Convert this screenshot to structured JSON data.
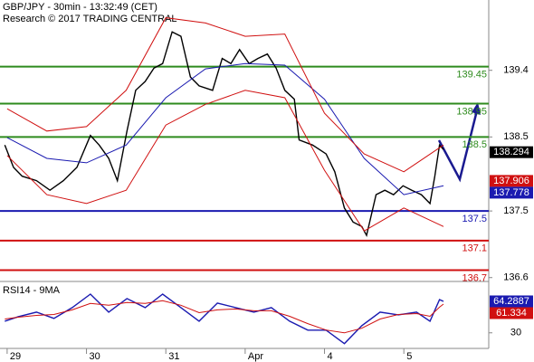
{
  "chart_data": [
    {
      "type": "line",
      "title": "GBP/JPY - 30min - 13:32:49 (CET)",
      "subtitle": "Research © 2017 TRADING CENTRAL",
      "xlim": [
        -0.09,
        6.07
      ],
      "ylim": [
        136.56,
        140.35
      ],
      "yticks": [
        139.4,
        138.5,
        137.5,
        136.6
      ],
      "levels": [
        {
          "value": 139.45,
          "color": "#2e8b1e"
        },
        {
          "value": 138.95,
          "color": "#2e8b1e"
        },
        {
          "value": 138.5,
          "color": "#2e8b1e"
        },
        {
          "value": 137.5,
          "color": "#1a1ab0"
        },
        {
          "value": 137.1,
          "color": "#d01010"
        },
        {
          "value": 136.7,
          "color": "#d01010"
        }
      ],
      "tags": [
        {
          "value": 138.294,
          "color": "#000000"
        },
        {
          "value": 137.906,
          "color": "#d01010"
        },
        {
          "value": 137.778,
          "color": "#1a1ab0"
        }
      ],
      "series": [
        {
          "color": "#000000",
          "x": [
            -0.03,
            0.08,
            0.19,
            0.37,
            0.54,
            0.71,
            0.88,
            1.05,
            1.16,
            1.28,
            1.39,
            1.51,
            1.62,
            1.74,
            1.85,
            1.96,
            2.08,
            2.19,
            2.31,
            2.42,
            2.59,
            2.71,
            2.82,
            2.93,
            3.05,
            3.16,
            3.28,
            3.39,
            3.5,
            3.62,
            3.68,
            3.85,
            4.02,
            4.13,
            4.25,
            4.36,
            4.47,
            4.53,
            4.65,
            4.76,
            4.87,
            4.99,
            5.1,
            5.22,
            5.33,
            5.39,
            5.45,
            5.5
          ],
          "values": [
            138.39,
            138.09,
            137.97,
            137.91,
            137.78,
            137.91,
            138.09,
            138.52,
            138.39,
            138.21,
            137.91,
            138.58,
            139.13,
            139.25,
            139.43,
            139.49,
            139.92,
            139.86,
            139.31,
            139.19,
            139.13,
            139.56,
            139.49,
            139.68,
            139.49,
            139.56,
            139.62,
            139.43,
            139.13,
            139.01,
            138.46,
            138.39,
            138.27,
            138.03,
            137.54,
            137.35,
            137.29,
            137.17,
            137.72,
            137.78,
            137.72,
            137.84,
            137.78,
            137.72,
            137.6,
            137.97,
            138.39,
            138.33
          ]
        },
        {
          "color": "#1a1ab0",
          "x": [
            0,
            0.5,
            1,
            1.5,
            2,
            2.5,
            3,
            3.5,
            4,
            4.5,
            5,
            5.5
          ],
          "values": [
            138.49,
            138.21,
            138.15,
            138.39,
            139.03,
            139.42,
            139.49,
            139.47,
            139.01,
            138.21,
            137.72,
            137.84
          ]
        },
        {
          "color": "#d01010",
          "x": [
            0,
            0.5,
            1,
            1.5,
            2,
            2.5,
            3,
            3.5,
            4,
            4.5,
            5,
            5.5
          ],
          "values": [
            138.88,
            138.58,
            138.64,
            139.13,
            140.11,
            140.04,
            139.86,
            139.89,
            138.82,
            138.27,
            138.03,
            138.39
          ]
        },
        {
          "color": "#d01010",
          "x": [
            0,
            0.5,
            1,
            1.5,
            2,
            2.5,
            3,
            3.5,
            4,
            4.5,
            5,
            5.5
          ],
          "values": [
            138.25,
            137.72,
            137.6,
            137.78,
            138.66,
            138.94,
            139.13,
            139.03,
            138.05,
            137.23,
            137.54,
            137.29
          ]
        }
      ]
    },
    {
      "type": "line",
      "title": "RSI14 - 9MA",
      "xlim": [
        -0.09,
        6.07
      ],
      "ylim": [
        13,
        84
      ],
      "yticks": [
        30
      ],
      "xticks": [
        {
          "value": 0,
          "label": "29"
        },
        {
          "value": 1,
          "label": "30"
        },
        {
          "value": 2,
          "label": "31"
        },
        {
          "value": 3,
          "label": "Apr"
        },
        {
          "value": 4,
          "label": "4"
        },
        {
          "value": 5,
          "label": "5"
        }
      ],
      "tags": [
        {
          "value": 64.2887,
          "color": "#1a1ab0"
        },
        {
          "value": 61.334,
          "color": "#d01010"
        }
      ],
      "series": [
        {
          "color": "#1a1ab0",
          "x": [
            -0.03,
            0.14,
            0.37,
            0.59,
            0.82,
            1.05,
            1.28,
            1.51,
            1.74,
            1.96,
            2.19,
            2.42,
            2.65,
            2.88,
            3.11,
            3.33,
            3.56,
            3.79,
            4.02,
            4.25,
            4.47,
            4.7,
            4.93,
            5.16,
            5.33,
            5.45,
            5.5
          ],
          "values": [
            42.7,
            47.6,
            52.5,
            45.7,
            57.5,
            72.2,
            52.5,
            67.3,
            57.5,
            72.2,
            57.5,
            42.7,
            62.4,
            57.5,
            52.5,
            57.5,
            42.7,
            32.9,
            32.9,
            18.2,
            37.8,
            52.5,
            49.6,
            52.5,
            42.7,
            66.2,
            64.3
          ]
        },
        {
          "color": "#d01010",
          "x": [
            -0.03,
            0.14,
            0.37,
            0.59,
            0.82,
            1.05,
            1.28,
            1.51,
            1.74,
            1.96,
            2.19,
            2.42,
            2.65,
            2.88,
            3.11,
            3.33,
            3.56,
            3.79,
            4.02,
            4.25,
            4.47,
            4.7,
            4.93,
            5.16,
            5.33,
            5.45,
            5.5
          ],
          "values": [
            45,
            47,
            49,
            50,
            55,
            62,
            60,
            63,
            62,
            65,
            60,
            52,
            55,
            56,
            54,
            54,
            48,
            40,
            33,
            30,
            35,
            45,
            50,
            51,
            48,
            58,
            61.3
          ]
        }
      ]
    }
  ]
}
